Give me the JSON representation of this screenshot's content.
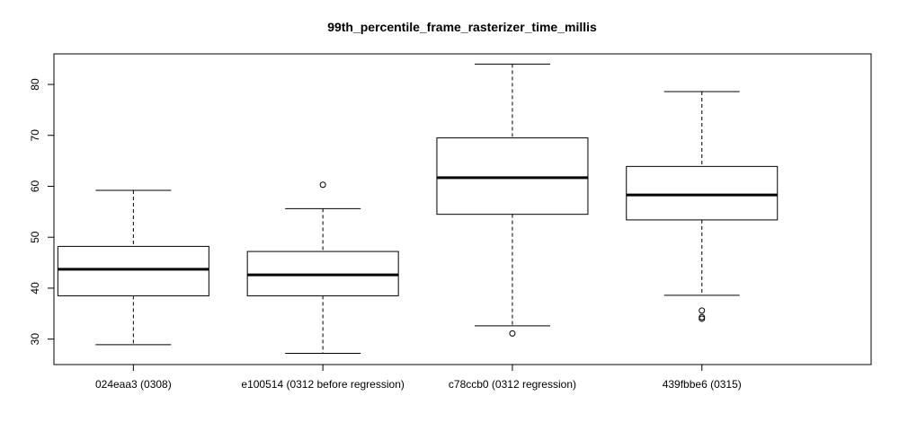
{
  "chart_data": {
    "type": "boxplot",
    "title": "99th_percentile_frame_rasterizer_time_millis",
    "xlabel": "",
    "ylabel": "",
    "ylim": [
      25.0,
      86.0
    ],
    "yticks": [
      30,
      40,
      50,
      60,
      70,
      80
    ],
    "categories": [
      "024eaa3 (0308)",
      "e100514 (0312 before regression)",
      "c78ccb0 (0312 regression)",
      "439fbbe6 (0315)"
    ],
    "boxes": [
      {
        "whisker_low": 28.9,
        "q1": 38.5,
        "median": 43.7,
        "q3": 48.2,
        "whisker_high": 59.2,
        "outliers": []
      },
      {
        "whisker_low": 27.2,
        "q1": 38.5,
        "median": 42.6,
        "q3": 47.2,
        "whisker_high": 55.6,
        "outliers": [
          60.3
        ]
      },
      {
        "whisker_low": 32.6,
        "q1": 54.5,
        "median": 61.7,
        "q3": 69.5,
        "whisker_high": 84.0,
        "outliers": [
          31.1
        ]
      },
      {
        "whisker_low": 38.6,
        "q1": 53.4,
        "median": 58.3,
        "q3": 63.9,
        "whisker_high": 78.6,
        "outliers": [
          35.6,
          34.3,
          34.0
        ]
      }
    ],
    "grid": false,
    "legend": "none"
  }
}
